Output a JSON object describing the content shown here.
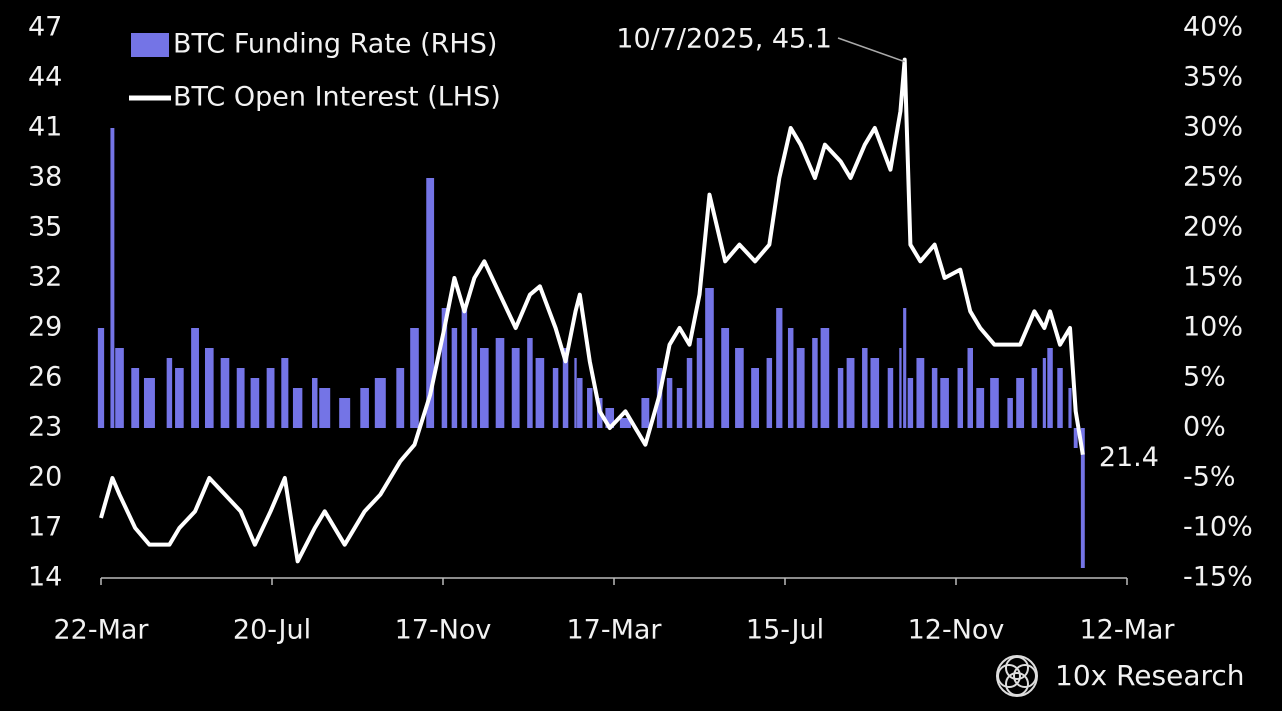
{
  "chart_data": {
    "type": "bar-line",
    "series": [
      {
        "name": "BTC Funding Rate (RHS)",
        "type": "bar",
        "axis": "y2",
        "color": "#7474e6",
        "values": [
          10,
          30,
          8,
          6,
          5,
          7,
          6,
          10,
          8,
          7,
          6,
          5,
          6,
          7,
          4,
          5,
          4,
          3,
          4,
          5,
          6,
          10,
          25,
          12,
          10,
          12,
          10,
          8,
          9,
          8,
          9,
          7,
          6,
          8,
          7,
          5,
          4,
          3,
          2,
          1,
          3,
          6,
          5,
          4,
          7,
          9,
          14,
          10,
          8,
          6,
          7,
          12,
          10,
          8,
          9,
          10,
          6,
          7,
          8,
          7,
          6,
          8,
          12,
          5,
          7,
          6,
          5,
          6,
          8,
          4,
          5,
          3,
          5,
          6,
          7,
          8,
          6,
          4,
          -2,
          -14
        ]
      },
      {
        "name": "BTC Open Interest (LHS)",
        "type": "line",
        "axis": "y",
        "color": "#ffffff",
        "values": [
          17.6,
          20,
          19,
          17,
          16,
          16,
          17,
          18,
          20,
          19,
          18,
          16,
          18,
          20,
          15,
          17,
          18,
          16,
          18,
          19,
          21,
          22,
          25,
          29,
          32,
          30,
          32,
          33,
          31,
          29,
          31,
          31.5,
          29,
          27,
          30,
          31,
          27,
          24,
          23,
          24,
          22,
          25,
          28,
          29,
          28,
          31,
          37,
          33,
          34,
          33,
          34,
          38,
          41,
          40,
          38,
          40,
          39,
          38,
          40,
          41,
          38.5,
          42,
          45.1,
          34,
          33,
          34,
          32,
          32.5,
          30,
          29,
          28,
          28,
          28,
          30,
          29,
          30,
          28,
          29,
          24,
          21.4
        ]
      }
    ],
    "x": [
      0,
      8,
      13,
      24,
      34,
      48,
      55,
      66,
      76,
      87,
      98,
      108,
      119,
      129,
      138,
      150,
      157,
      171,
      185,
      196,
      210,
      220,
      231,
      241,
      248,
      255,
      262,
      269,
      280,
      291,
      301,
      308,
      319,
      326,
      333,
      336,
      343,
      350,
      357,
      368,
      382,
      392,
      399,
      406,
      413,
      420,
      427,
      438,
      448,
      459,
      469,
      476,
      484,
      491,
      501,
      508,
      519,
      526,
      536,
      543,
      554,
      561,
      564,
      568,
      575,
      585,
      592,
      603,
      610,
      617,
      627,
      638,
      645,
      655,
      662,
      666,
      673,
      680,
      684,
      689
    ],
    "xlim": [
      0,
      720
    ],
    "xticks": [
      {
        "value": 0,
        "label": "22-Mar"
      },
      {
        "value": 120,
        "label": "20-Jul"
      },
      {
        "value": 240,
        "label": "17-Nov"
      },
      {
        "value": 360,
        "label": "17-Mar"
      },
      {
        "value": 480,
        "label": "15-Jul"
      },
      {
        "value": 600,
        "label": "12-Nov"
      },
      {
        "value": 720,
        "label": "12-Mar"
      }
    ],
    "ylim": [
      14,
      47
    ],
    "yticks": [
      14,
      17,
      20,
      23,
      26,
      29,
      32,
      35,
      38,
      41,
      44,
      47
    ],
    "y2lim": [
      -15,
      40
    ],
    "y2ticks": [
      {
        "value": -15,
        "label": "-15%"
      },
      {
        "value": -10,
        "label": "-10%"
      },
      {
        "value": -5,
        "label": "-5%"
      },
      {
        "value": 0,
        "label": "0%"
      },
      {
        "value": 5,
        "label": "5%"
      },
      {
        "value": 10,
        "label": "10%"
      },
      {
        "value": 15,
        "label": "15%"
      },
      {
        "value": 20,
        "label": "20%"
      },
      {
        "value": 25,
        "label": "25%"
      },
      {
        "value": 30,
        "label": "30%"
      },
      {
        "value": 35,
        "label": "35%"
      },
      {
        "value": 40,
        "label": "40%"
      }
    ],
    "annotation": "10/7/2025, 45.1",
    "legend": "top-left",
    "source": "10x Research"
  }
}
